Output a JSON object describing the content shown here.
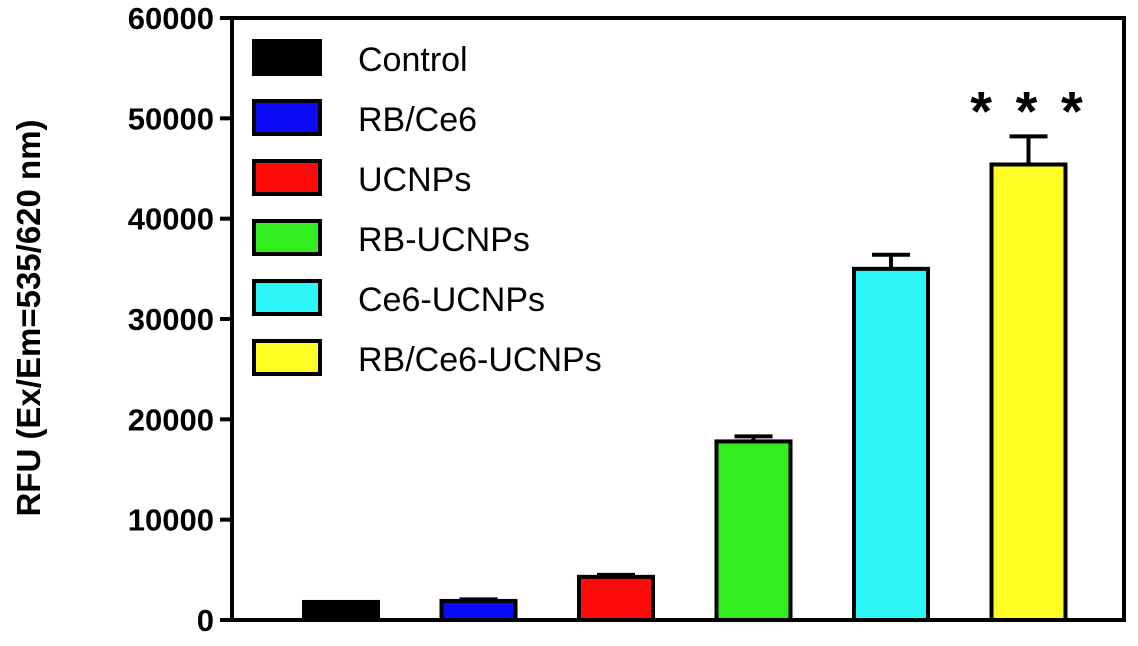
{
  "chart_data": {
    "type": "bar",
    "title": "",
    "xlabel": "",
    "ylabel": "RFU (Ex/Em=535/620 nm)",
    "ylim": [
      0,
      60000
    ],
    "yticks": [
      0,
      10000,
      20000,
      30000,
      40000,
      50000,
      60000
    ],
    "yticklabels": [
      "0",
      "10000",
      "20000",
      "30000",
      "40000",
      "50000",
      "60000"
    ],
    "grid": false,
    "legend_position": "top-left",
    "categories": [
      "Control",
      "RB/Ce6",
      "UCNPs",
      "RB-UCNPs",
      "Ce6-UCNPs",
      "RB/Ce6-UCNPs"
    ],
    "values": [
      1800,
      1900,
      4300,
      17800,
      35000,
      45400
    ],
    "errors": [
      0,
      150,
      200,
      500,
      1400,
      2800
    ],
    "colors": [
      "#000000",
      "#0a0af5",
      "#ff0a0a",
      "#33ee1e",
      "#2bf5f7",
      "#fffd24"
    ],
    "annotations": [
      {
        "category": "RB/Ce6-UCNPs",
        "text": "* * *"
      }
    ]
  }
}
